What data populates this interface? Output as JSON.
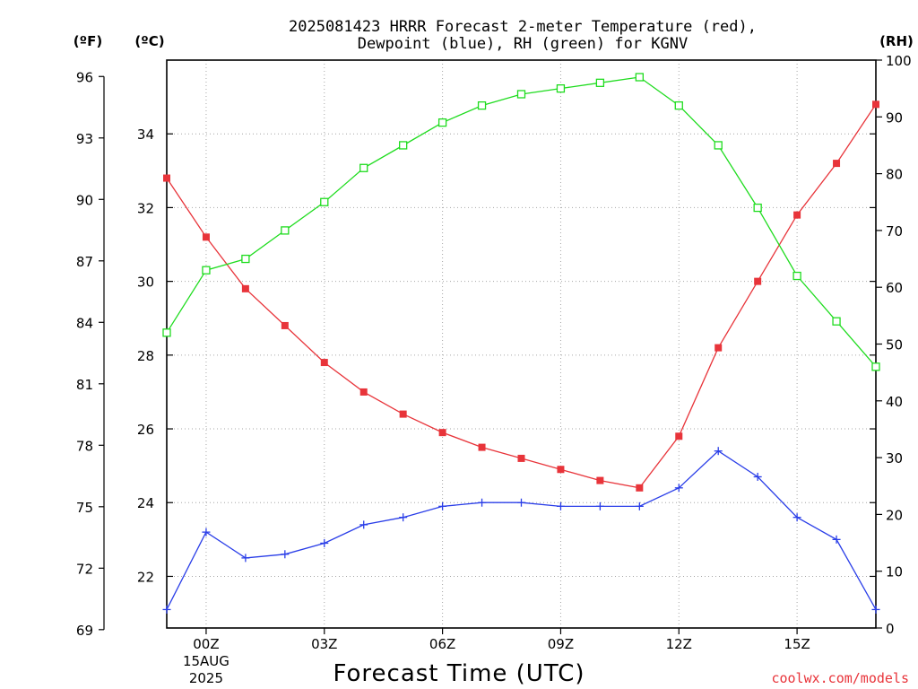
{
  "chart_data": {
    "type": "line",
    "title_lines": [
      "2025081423 HRRR Forecast 2-meter Temperature (red),",
      "Dewpoint (blue), RH (green) for KGNV"
    ],
    "left_outer_unit": "(ºF)",
    "left_inner_unit": "(ºC)",
    "right_unit": "(RH)",
    "xlabel": "Forecast Time (UTC)",
    "credit": "coolwx.com/models",
    "x_ticks": [
      "00Z",
      "03Z",
      "06Z",
      "09Z",
      "12Z",
      "15Z"
    ],
    "x_date_lines": [
      "15AUG",
      "2025"
    ],
    "x_hours_from_start": [
      0,
      1,
      2,
      3,
      4,
      5,
      6,
      7,
      8,
      9,
      10,
      11,
      12,
      13,
      14,
      15,
      16,
      17,
      18
    ],
    "x_range_hours": [
      0,
      18
    ],
    "first_hour_label_offset": 1,
    "celsius_ticks": [
      22,
      24,
      26,
      28,
      30,
      32,
      34
    ],
    "fahrenheit_ticks": [
      69,
      72,
      75,
      78,
      81,
      84,
      87,
      90,
      93,
      96
    ],
    "rh_ticks": [
      0,
      10,
      20,
      30,
      40,
      50,
      60,
      70,
      80,
      90,
      100
    ],
    "ylim_celsius": [
      20.6,
      36.0
    ],
    "ylim_rh": [
      0,
      100
    ],
    "grid": true,
    "series": [
      {
        "name": "Temperature (red)",
        "axis": "celsius",
        "color": "#e8343a",
        "marker": "filled-square",
        "values": [
          32.8,
          31.2,
          29.8,
          28.8,
          27.8,
          27.0,
          26.4,
          25.9,
          25.5,
          25.2,
          24.9,
          24.6,
          24.4,
          25.8,
          28.2,
          30.0,
          31.8,
          33.2,
          34.8
        ]
      },
      {
        "name": "Dewpoint (blue)",
        "axis": "celsius",
        "color": "#2a3ee8",
        "marker": "plus",
        "values": [
          21.1,
          23.2,
          22.5,
          22.6,
          22.9,
          23.4,
          23.6,
          23.9,
          24.0,
          24.0,
          23.9,
          23.9,
          23.9,
          24.4,
          25.4,
          24.7,
          23.6,
          23.0,
          21.1
        ]
      },
      {
        "name": "RH (green)",
        "axis": "rh",
        "color": "#1fdc1f",
        "marker": "open-square",
        "values": [
          52,
          63,
          65,
          70,
          75,
          81,
          85,
          89,
          92,
          94,
          95,
          96,
          97,
          92,
          85,
          74,
          62,
          54,
          46
        ]
      }
    ]
  }
}
